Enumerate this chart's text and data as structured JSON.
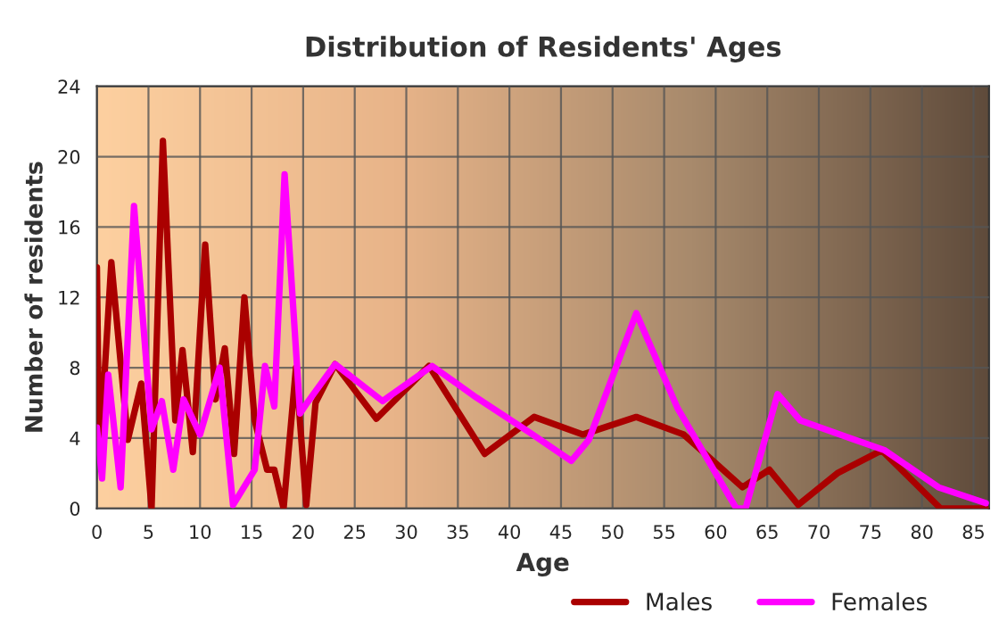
{
  "chart_data": {
    "type": "line",
    "title": "Distribution of Residents' Ages",
    "xlabel": "Age",
    "ylabel": "Number of residents",
    "xlim": [
      0,
      86.5
    ],
    "xticks": [
      0,
      5,
      10,
      15,
      20,
      25,
      30,
      35,
      40,
      45,
      50,
      55,
      60,
      65,
      70,
      75,
      80,
      85
    ],
    "ylim": [
      0,
      24
    ],
    "yticks": [
      0,
      4,
      8,
      12,
      16,
      20,
      24
    ],
    "grid": true,
    "legend": "bottom",
    "series": [
      {
        "name": "Males",
        "color": "#aa0000",
        "x": [
          0,
          0.2,
          0.5,
          1.4,
          3,
          4.3,
          5.3,
          6.4,
          7.6,
          8.3,
          9.3,
          10.5,
          11.5,
          12.4,
          13.3,
          14.3,
          15.3,
          16.5,
          17.2,
          18.1,
          19.3,
          20.3,
          21.2,
          23.1,
          27.1,
          32.2,
          37.6,
          42.4,
          47.1,
          52.3,
          56.9,
          62.6,
          65.2,
          68,
          71.8,
          76.1,
          81.8,
          86.2
        ],
        "values": [
          13.7,
          4,
          5.3,
          14,
          3.9,
          7.1,
          0,
          20.9,
          5,
          9,
          3.2,
          15,
          6.2,
          9.1,
          3.1,
          12,
          5,
          2.2,
          2.2,
          0,
          8,
          0.2,
          6,
          8.2,
          5.1,
          8.1,
          3.1,
          5.2,
          4.2,
          5.2,
          4.2,
          1.2,
          2.2,
          0.2,
          2,
          3.3,
          0,
          0
        ]
      },
      {
        "name": "Females",
        "color": "#ff00ff",
        "x": [
          0,
          0.5,
          1.1,
          2.3,
          3.6,
          5.3,
          6.3,
          7.4,
          8.4,
          10,
          11.9,
          13.2,
          15.3,
          16.3,
          17.2,
          18.2,
          19.7,
          20.5,
          23.1,
          27.7,
          32.5,
          36.8,
          42,
          46,
          47.7,
          52.3,
          56.3,
          62,
          62.9,
          66,
          68.2,
          73,
          76.4,
          81.6,
          86.2
        ],
        "values": [
          4.6,
          1.7,
          7.6,
          1.2,
          17.2,
          4.5,
          6.1,
          2.2,
          6.2,
          4.2,
          8,
          0.2,
          2.2,
          8.1,
          5.8,
          19,
          5.4,
          6.1,
          8.2,
          6.1,
          8.1,
          6.3,
          4.3,
          2.7,
          3.9,
          11.1,
          5.7,
          0,
          0,
          6.5,
          5,
          4,
          3.3,
          1.2,
          0.3
        ]
      }
    ]
  }
}
